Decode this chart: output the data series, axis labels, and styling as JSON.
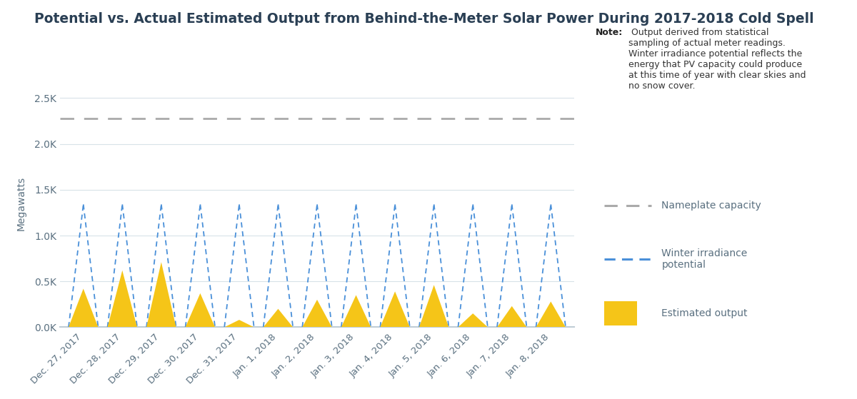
{
  "title": "Potential vs. Actual Estimated Output from Behind-the-Meter Solar Power During 2017-2018 Cold Spell",
  "ylabel": "Megawatts",
  "background_color": "#ffffff",
  "nameplate_capacity": 2280,
  "winter_irradiance_peak": 1340,
  "categories": [
    "Dec. 27, 2017",
    "Dec. 28, 2017",
    "Dec. 29, 2017",
    "Dec. 30, 2017",
    "Dec. 31, 2017",
    "Jan. 1, 2018",
    "Jan. 2, 2018",
    "Jan. 3, 2018",
    "Jan. 4, 2018",
    "Jan. 5, 2018",
    "Jan. 6, 2018",
    "Jan. 7, 2018",
    "Jan. 8, 2018"
  ],
  "estimated_output": [
    420,
    620,
    710,
    370,
    80,
    200,
    300,
    350,
    390,
    460,
    150,
    230,
    280
  ],
  "nameplate_color": "#aaaaaa",
  "irradiance_color": "#4a90d9",
  "output_color": "#f5c518",
  "title_color": "#2a3f54",
  "axis_color": "#5a7080",
  "grid_color": "#d8e2e8",
  "note_bold": "Note:",
  "note_rest": " Output derived from statistical\nsampling of actual meter readings.\nWinter irradiance potential reflects the\nenergy that PV capacity could produce\nat this time of year with clear skies and\nno snow cover.",
  "legend_nameplate": "Nameplate capacity",
  "legend_irradiance": "Winter irradiance\npotential",
  "legend_output": "Estimated output",
  "ylim": [
    0,
    2700
  ],
  "yticks": [
    0,
    500,
    1000,
    1500,
    2000,
    2500
  ],
  "ytick_labels": [
    "0.0K",
    "0.5K",
    "1.0K",
    "1.5K",
    "2.0K",
    "2.5K"
  ],
  "figsize": [
    12.0,
    5.59
  ],
  "dpi": 100
}
